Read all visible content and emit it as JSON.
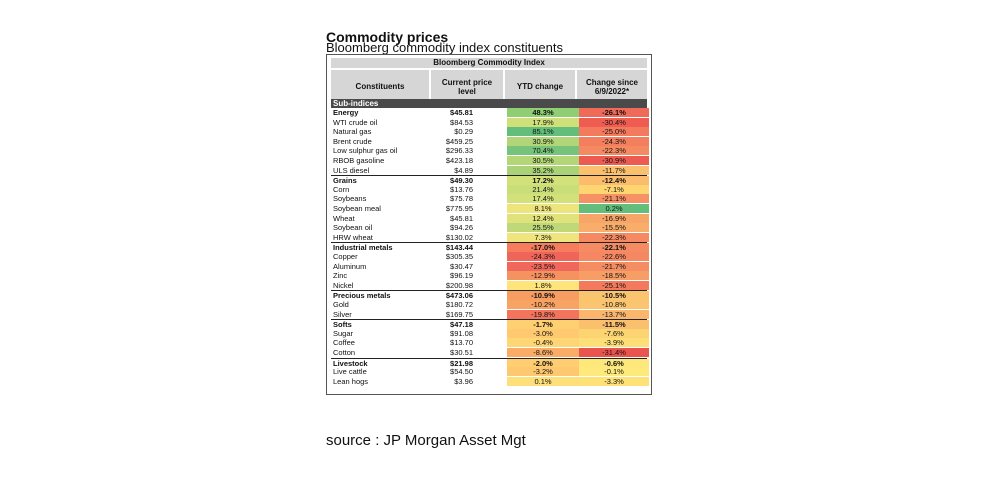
{
  "title": "Commodity prices",
  "subtitle": "Bloomberg commodity index constituents",
  "table_header": "Bloomberg Commodity Index",
  "section_label": "Sub-indices",
  "source": "source : JP Morgan Asset Mgt",
  "chart_data": {
    "type": "table",
    "columns": [
      "Constituents",
      "Current price level",
      "YTD change",
      "Change since 6/9/2022*"
    ],
    "rows": [
      {
        "name": "Energy",
        "price": "$45.81",
        "ytd": "48.3%",
        "chg": "-26.1%",
        "group": true,
        "ytd_color": "#8fce72",
        "chg_color": "#f06a5a"
      },
      {
        "name": "WTI crude oil",
        "price": "$84.53",
        "ytd": "17.9%",
        "chg": "-30.4%",
        "group": false,
        "ytd_color": "#cfe07a",
        "chg_color": "#ee5c52"
      },
      {
        "name": "Natural gas",
        "price": "$0.29",
        "ytd": "85.1%",
        "chg": "-25.0%",
        "group": false,
        "ytd_color": "#63be7b",
        "chg_color": "#f37a5c"
      },
      {
        "name": "Brent crude",
        "price": "$459.25",
        "ytd": "30.9%",
        "chg": "-24.3%",
        "group": false,
        "ytd_color": "#b2d677",
        "chg_color": "#f37f5e"
      },
      {
        "name": "Low sulphur gas oil",
        "price": "$296.33",
        "ytd": "70.4%",
        "chg": "-22.3%",
        "group": false,
        "ytd_color": "#76c47c",
        "chg_color": "#f58a62"
      },
      {
        "name": "RBOB gasoline",
        "price": "$423.18",
        "ytd": "30.5%",
        "chg": "-30.9%",
        "group": false,
        "ytd_color": "#b4d677",
        "chg_color": "#ec5a50"
      },
      {
        "name": "ULS diesel",
        "price": "$4.89",
        "ytd": "35.2%",
        "chg": "-11.7%",
        "group": false,
        "ytd_color": "#a9d376",
        "chg_color": "#fbc06e"
      },
      {
        "name": "Grains",
        "price": "$49.30",
        "ytd": "17.2%",
        "chg": "-12.4%",
        "group": true,
        "ytd_color": "#d3e17a",
        "chg_color": "#fbbc6d"
      },
      {
        "name": "Corn",
        "price": "$13.76",
        "ytd": "21.4%",
        "chg": "-7.1%",
        "group": false,
        "ytd_color": "#c9dd79",
        "chg_color": "#fdd672"
      },
      {
        "name": "Soybeans",
        "price": "$75.78",
        "ytd": "17.4%",
        "chg": "-21.1%",
        "group": false,
        "ytd_color": "#d2e17a",
        "chg_color": "#f69165"
      },
      {
        "name": "Soybean meal",
        "price": "$775.95",
        "ytd": "8.1%",
        "chg": "0.2%",
        "group": false,
        "ytd_color": "#eee47c",
        "chg_color": "#63be7b"
      },
      {
        "name": "Wheat",
        "price": "$45.81",
        "ytd": "12.4%",
        "chg": "-16.9%",
        "group": false,
        "ytd_color": "#e0e27b",
        "chg_color": "#f8a668"
      },
      {
        "name": "Soybean oil",
        "price": "$94.26",
        "ytd": "25.5%",
        "chg": "-15.5%",
        "group": false,
        "ytd_color": "#bfd978",
        "chg_color": "#f9ad6a"
      },
      {
        "name": "HRW wheat",
        "price": "$130.02",
        "ytd": "7.3%",
        "chg": "-22.3%",
        "group": false,
        "ytd_color": "#f0e57c",
        "chg_color": "#f58a62"
      },
      {
        "name": "Industrial metals",
        "price": "$143.44",
        "ytd": "-17.0%",
        "chg": "-22.1%",
        "group": true,
        "ytd_color": "#f57d5e",
        "chg_color": "#f58b63"
      },
      {
        "name": "Copper",
        "price": "$305.35",
        "ytd": "-24.3%",
        "chg": "-22.6%",
        "group": false,
        "ytd_color": "#f0655a",
        "chg_color": "#f58862"
      },
      {
        "name": "Aluminum",
        "price": "$30.47",
        "ytd": "-23.5%",
        "chg": "-21.7%",
        "group": false,
        "ytd_color": "#f0685b",
        "chg_color": "#f58d63"
      },
      {
        "name": "Zinc",
        "price": "$96.19",
        "ytd": "-12.9%",
        "chg": "-18.5%",
        "group": false,
        "ytd_color": "#f6925f",
        "chg_color": "#f79d66"
      },
      {
        "name": "Nickel",
        "price": "$200.98",
        "ytd": "1.8%",
        "chg": "-25.1%",
        "group": false,
        "ytd_color": "#fee57a",
        "chg_color": "#f37a5c"
      },
      {
        "name": "Precious metals",
        "price": "$473.06",
        "ytd": "-10.9%",
        "chg": "-10.5%",
        "group": true,
        "ytd_color": "#f89d62",
        "chg_color": "#fbc56f"
      },
      {
        "name": "Gold",
        "price": "$180.72",
        "ytd": "-10.2%",
        "chg": "-10.8%",
        "group": false,
        "ytd_color": "#f8a263",
        "chg_color": "#fbc46f"
      },
      {
        "name": "Silver",
        "price": "$169.75",
        "ytd": "-19.8%",
        "chg": "-13.7%",
        "group": false,
        "ytd_color": "#f3735c",
        "chg_color": "#fab66c"
      },
      {
        "name": "Softs",
        "price": "$47.18",
        "ytd": "-1.7%",
        "chg": "-11.5%",
        "group": true,
        "ytd_color": "#fed072",
        "chg_color": "#fbc06e"
      },
      {
        "name": "Sugar",
        "price": "$91.08",
        "ytd": "-3.0%",
        "chg": "-7.6%",
        "group": false,
        "ytd_color": "#fec96f",
        "chg_color": "#fdd472"
      },
      {
        "name": "Coffee",
        "price": "$13.70",
        "ytd": "-0.4%",
        "chg": "-3.9%",
        "group": false,
        "ytd_color": "#fed774",
        "chg_color": "#fedf77"
      },
      {
        "name": "Cotton",
        "price": "$30.51",
        "ytd": "-8.6%",
        "chg": "-31.4%",
        "group": false,
        "ytd_color": "#faac66",
        "chg_color": "#e9544e"
      },
      {
        "name": "Livestock",
        "price": "$21.98",
        "ytd": "-2.0%",
        "chg": "-0.6%",
        "group": true,
        "ytd_color": "#fece71",
        "chg_color": "#fee87b"
      },
      {
        "name": "Live cattle",
        "price": "$54.50",
        "ytd": "-3.2%",
        "chg": "-0.1%",
        "group": false,
        "ytd_color": "#fec870",
        "chg_color": "#feea7c"
      },
      {
        "name": "Lean hogs",
        "price": "$3.96",
        "ytd": "0.1%",
        "chg": "-3.3%",
        "group": false,
        "ytd_color": "#fee07a",
        "chg_color": "#fee177"
      }
    ]
  }
}
